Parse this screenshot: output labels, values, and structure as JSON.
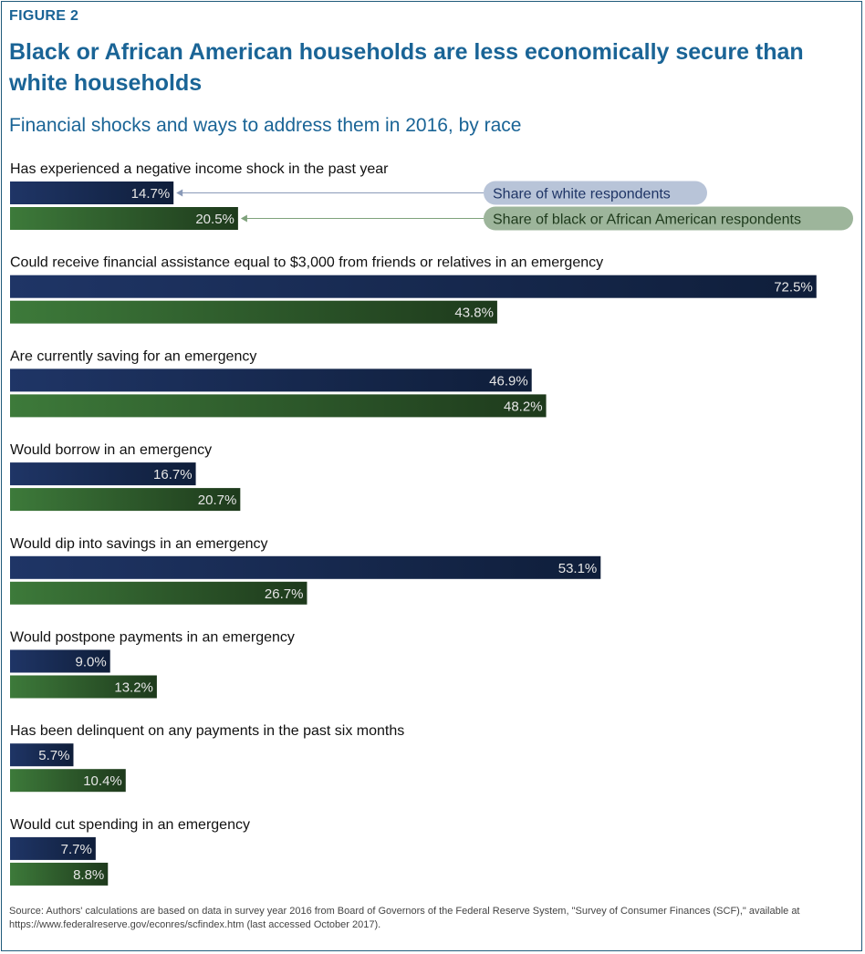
{
  "figure_label": "FIGURE 2",
  "title": "Black or African American households are less economically secure than white households",
  "subtitle": "Financial shocks and ways to address them in 2016, by race",
  "source": "Source: Authors' calculations are based on data in survey year 2016 from Board of Governors of the Federal Reserve System, \"Survey of Consumer Finances (SCF),\" available at https://www.federalreserve.gov/econres/scfindex.htm (last accessed October 2017).",
  "colors": {
    "white_series": "#1f3566",
    "white_series_dark": "#0f1e3a",
    "black_series": "#3d7a3a",
    "black_series_dark": "#1e3a1c",
    "title": "#1a6496",
    "legend_white_bg": "#b8c4d8",
    "legend_white_text": "#1f3566",
    "legend_black_bg": "#9db59b",
    "legend_black_text": "#1e3a1c"
  },
  "chart_data": {
    "type": "bar",
    "orientation": "horizontal",
    "categories": [
      "Has experienced a negative income shock in the past year",
      "Could receive financial assistance equal to $3,000 from friends or relatives in an emergency",
      "Are currently saving for an emergency",
      "Would borrow in an emergency",
      "Would dip into savings in an emergency",
      "Would postpone payments in an emergency",
      "Has been delinquent on any payments in the past six months",
      "Would cut spending in an emergency"
    ],
    "series": [
      {
        "name": "Share of white respondents",
        "values": [
          14.7,
          72.5,
          46.9,
          16.7,
          53.1,
          9.0,
          5.7,
          7.7
        ],
        "labels": [
          "14.7%",
          "72.5%",
          "46.9%",
          "16.7%",
          "53.1%",
          "9.0%",
          "5.7%",
          "7.7%"
        ]
      },
      {
        "name": "Share of black or African American respondents",
        "values": [
          20.5,
          43.8,
          48.2,
          20.7,
          26.7,
          13.2,
          10.4,
          8.8
        ],
        "labels": [
          "20.5%",
          "43.8%",
          "48.2%",
          "20.7%",
          "26.7%",
          "13.2%",
          "10.4%",
          "8.8%"
        ]
      }
    ],
    "xlim": [
      0,
      100
    ],
    "grid": false,
    "legend": "callout, right of first category"
  }
}
